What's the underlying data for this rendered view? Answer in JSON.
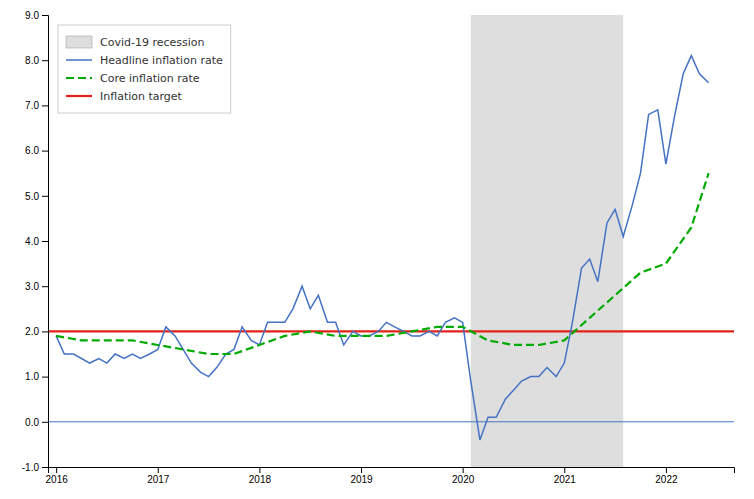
{
  "chart_data": {
    "type": "line",
    "xlim": [
      2015.92,
      2022.67
    ],
    "xticks": [
      2016,
      2017,
      2018,
      2019,
      2020,
      2021,
      2022
    ],
    "ylim": [
      -1.0,
      9.0
    ],
    "yticks": [
      {
        "value": -1.0,
        "label": "-1.0"
      },
      {
        "value": 0.0,
        "label": "0.0"
      },
      {
        "value": 1.0,
        "label": "1.0"
      },
      {
        "value": 2.0,
        "label": "2.0"
      },
      {
        "value": 3.0,
        "label": "3.0"
      },
      {
        "value": 4.0,
        "label": "4.0"
      },
      {
        "value": 5.0,
        "label": "5.0"
      },
      {
        "value": 6.0,
        "label": "6.0"
      },
      {
        "value": 7.0,
        "label": "7.0"
      },
      {
        "value": 8.0,
        "label": "8.0"
      },
      {
        "value": 9.0,
        "label": "9.0"
      }
    ],
    "grid": false,
    "legend": "upper left",
    "shaded_regions": [
      {
        "name": "Covid-19 recession",
        "start": 2020.08,
        "end": 2021.58,
        "color": "#c8c8c8"
      }
    ],
    "series": [
      {
        "name": "Headline inflation rate",
        "color": "#4472c4",
        "line_style": "solid",
        "x": [
          2016.0,
          2016.08,
          2016.17,
          2016.25,
          2016.33,
          2016.42,
          2016.5,
          2016.58,
          2016.67,
          2016.75,
          2016.83,
          2016.92,
          2017.0,
          2017.08,
          2017.17,
          2017.25,
          2017.33,
          2017.42,
          2017.5,
          2017.58,
          2017.67,
          2017.75,
          2017.83,
          2017.92,
          2018.0,
          2018.08,
          2018.17,
          2018.25,
          2018.33,
          2018.42,
          2018.5,
          2018.58,
          2018.67,
          2018.75,
          2018.83,
          2018.92,
          2019.0,
          2019.08,
          2019.17,
          2019.25,
          2019.33,
          2019.42,
          2019.5,
          2019.58,
          2019.67,
          2019.75,
          2019.83,
          2019.92,
          2020.0,
          2020.08,
          2020.17,
          2020.25,
          2020.33,
          2020.42,
          2020.5,
          2020.58,
          2020.67,
          2020.75,
          2020.83,
          2020.92,
          2021.0,
          2021.08,
          2021.17,
          2021.25,
          2021.33,
          2021.42,
          2021.5,
          2021.58,
          2021.67,
          2021.75,
          2021.83,
          2021.92,
          2022.0,
          2022.08,
          2022.17,
          2022.25,
          2022.33,
          2022.42
        ],
        "values": [
          1.9,
          1.5,
          1.5,
          1.4,
          1.3,
          1.4,
          1.3,
          1.5,
          1.4,
          1.5,
          1.4,
          1.5,
          1.6,
          2.1,
          1.9,
          1.6,
          1.3,
          1.1,
          1.0,
          1.2,
          1.5,
          1.6,
          2.1,
          1.8,
          1.7,
          2.2,
          2.2,
          2.2,
          2.5,
          3.0,
          2.5,
          2.8,
          2.2,
          2.2,
          1.7,
          2.0,
          1.9,
          1.9,
          2.0,
          2.2,
          2.1,
          2.0,
          1.9,
          1.9,
          2.0,
          1.9,
          2.2,
          2.3,
          2.2,
          0.9,
          -0.4,
          0.1,
          0.1,
          0.5,
          0.7,
          0.9,
          1.0,
          1.0,
          1.2,
          1.0,
          1.3,
          2.2,
          3.4,
          3.6,
          3.1,
          4.4,
          4.7,
          4.1,
          4.8,
          5.5,
          6.8,
          6.9,
          5.7,
          6.7,
          7.7,
          8.1,
          7.7,
          7.5
        ]
      },
      {
        "name": "Core inflation rate",
        "color": "#00aa00",
        "line_style": "dashed",
        "x": [
          2016.0,
          2016.25,
          2016.5,
          2016.75,
          2017.0,
          2017.25,
          2017.5,
          2017.75,
          2018.0,
          2018.25,
          2018.5,
          2018.75,
          2019.0,
          2019.25,
          2019.5,
          2019.75,
          2020.0,
          2020.25,
          2020.5,
          2020.75,
          2021.0,
          2021.25,
          2021.5,
          2021.75,
          2022.0,
          2022.25,
          2022.42
        ],
        "values": [
          1.9,
          1.8,
          1.8,
          1.8,
          1.7,
          1.6,
          1.5,
          1.5,
          1.7,
          1.9,
          2.0,
          1.9,
          1.9,
          1.9,
          2.0,
          2.1,
          2.1,
          1.8,
          1.7,
          1.7,
          1.8,
          2.3,
          2.8,
          3.3,
          3.5,
          4.3,
          5.5
        ]
      }
    ],
    "reference_lines": [
      {
        "name": "Inflation target",
        "value": 2.0,
        "color": "#e32119"
      },
      {
        "value": 0.0,
        "color": "#4472c4"
      }
    ]
  }
}
